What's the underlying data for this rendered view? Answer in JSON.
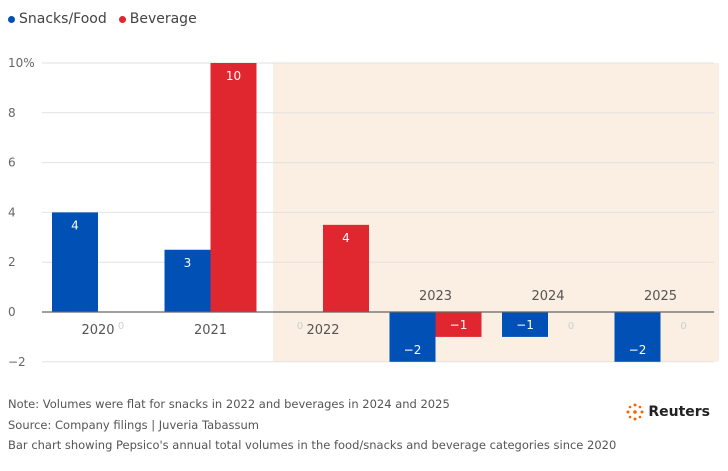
{
  "legend": {
    "items": [
      {
        "name": "Snacks/Food",
        "color": "#0050b5"
      },
      {
        "name": "Beverage",
        "color": "#e0262f"
      }
    ]
  },
  "chart_data": {
    "type": "bar",
    "categories": [
      "2020",
      "2021",
      "2022",
      "2023",
      "2024",
      "2025"
    ],
    "series": [
      {
        "name": "Snacks/Food",
        "values": [
          4,
          2.5,
          0,
          -2,
          -1,
          -2
        ],
        "labels": [
          "4",
          "3",
          "0",
          "−2",
          "−1",
          "−2"
        ]
      },
      {
        "name": "Beverage",
        "values": [
          0,
          10,
          3.5,
          -1,
          0,
          0
        ],
        "labels": [
          "0",
          "10",
          "4",
          "−1",
          "0",
          "0"
        ]
      }
    ],
    "ylim": [
      -2,
      10
    ],
    "yticks": [
      "−2",
      "0",
      "2",
      "4",
      "6",
      "8",
      "10%"
    ],
    "ytick_values": [
      -2,
      0,
      2,
      4,
      6,
      8,
      10
    ],
    "shaded_range": {
      "from": "2022",
      "to": "2025",
      "color": "#fbeee2"
    }
  },
  "footer": {
    "note": "Note: Volumes were flat for snacks in 2022 and beverages in 2024 and 2025",
    "source": "Source: Company filings | Juveria Tabassum",
    "description": "Bar chart showing Pepsico's annual total volumes in the food/snacks and beverage categories since 2020"
  },
  "logo": {
    "text": "Reuters",
    "color": "#fa6400"
  }
}
